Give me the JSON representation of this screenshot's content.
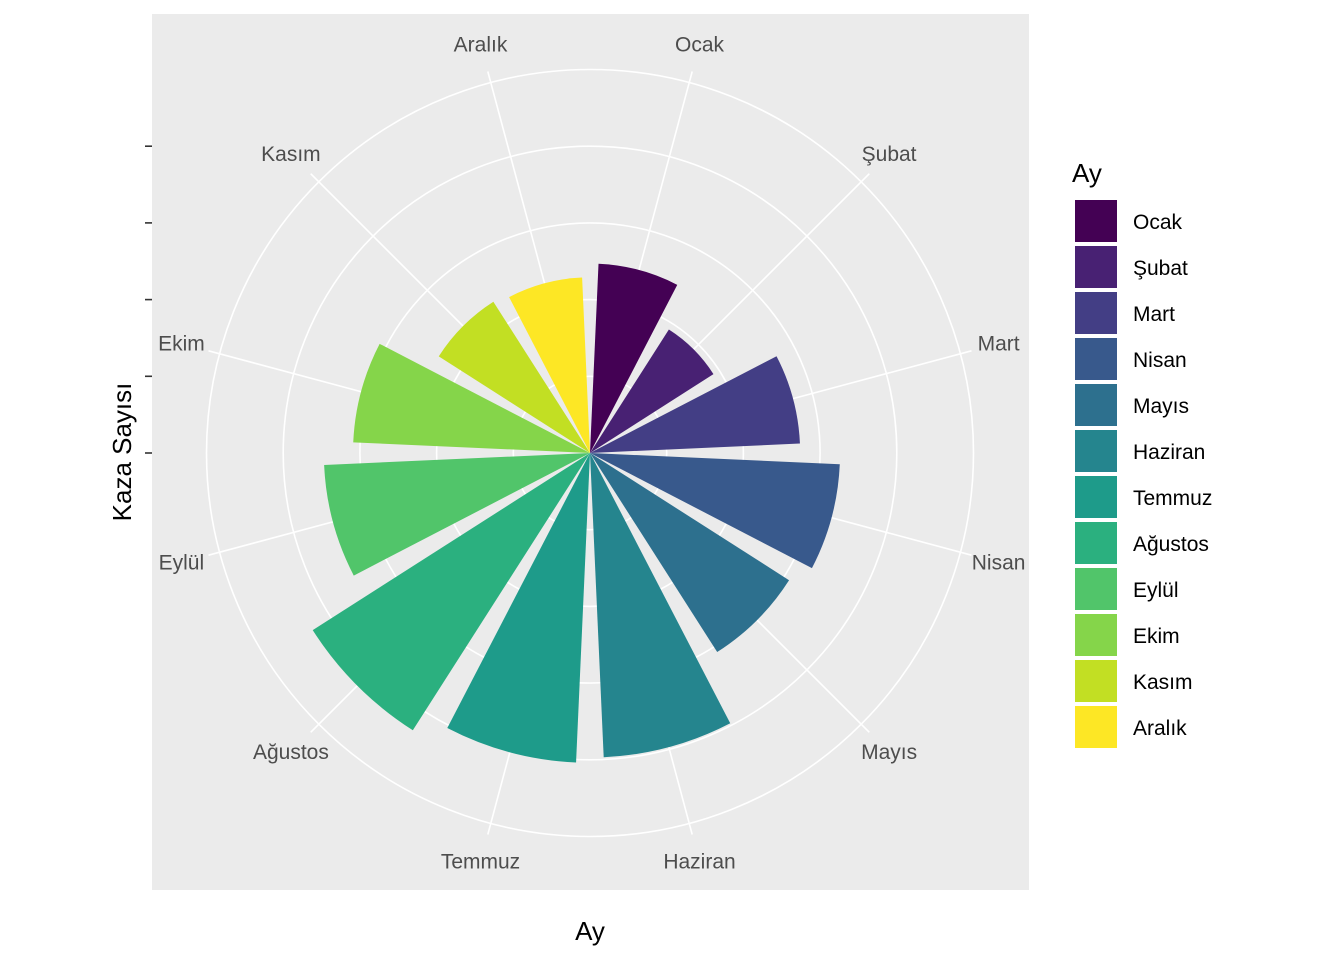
{
  "chart_data": {
    "type": "bar",
    "coord": "polar",
    "xlabel": "Ay",
    "ylabel": "Kaza Sayısı",
    "categories": [
      "Ocak",
      "Şubat",
      "Mart",
      "Nisan",
      "Mayıs",
      "Haziran",
      "Temmuz",
      "Ağustos",
      "Eylül",
      "Ekim",
      "Kasım",
      "Aralık"
    ],
    "values": [
      2.47,
      1.91,
      2.74,
      3.26,
      3.08,
      3.97,
      4.04,
      4.29,
      3.47,
      3.09,
      2.34,
      2.29
    ],
    "ylim": [
      0,
      5.15
    ],
    "colors": [
      "#440154",
      "#482173",
      "#433E85",
      "#38598C",
      "#2D708E",
      "#25858E",
      "#1E9B8A",
      "#2BB07F",
      "#51C56A",
      "#85D54A",
      "#C2DF23",
      "#FDE725"
    ],
    "legend": {
      "title": "Ay",
      "position": "right"
    },
    "grid": true
  }
}
